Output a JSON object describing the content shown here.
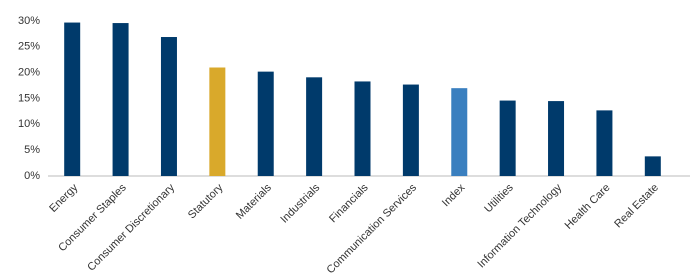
{
  "chart_data": {
    "type": "bar",
    "categories": [
      "Energy",
      "Consumer Staples",
      "Consumer Discretionary",
      "Statutory",
      "Materials",
      "Industrials",
      "Financials",
      "Communication Services",
      "Index",
      "Utilities",
      "Information Technology",
      "Health Care",
      "Real Estate"
    ],
    "values": [
      29.7,
      29.6,
      26.9,
      21.0,
      20.2,
      19.1,
      18.3,
      17.7,
      17.0,
      14.6,
      14.5,
      12.7,
      3.8
    ],
    "colors": [
      "#003a6b",
      "#003a6b",
      "#003a6b",
      "#d9a92b",
      "#003a6b",
      "#003a6b",
      "#003a6b",
      "#003a6b",
      "#3a7fbf",
      "#003a6b",
      "#003a6b",
      "#003a6b",
      "#003a6b"
    ],
    "ylim": [
      0,
      30
    ],
    "yticks": [
      {
        "value": 0,
        "label": "0%"
      },
      {
        "value": 5,
        "label": "5%"
      },
      {
        "value": 10,
        "label": "10%"
      },
      {
        "value": 15,
        "label": "15%"
      },
      {
        "value": 20,
        "label": "20%"
      },
      {
        "value": 25,
        "label": "25%"
      },
      {
        "value": 30,
        "label": "30%"
      }
    ],
    "grid": false
  }
}
